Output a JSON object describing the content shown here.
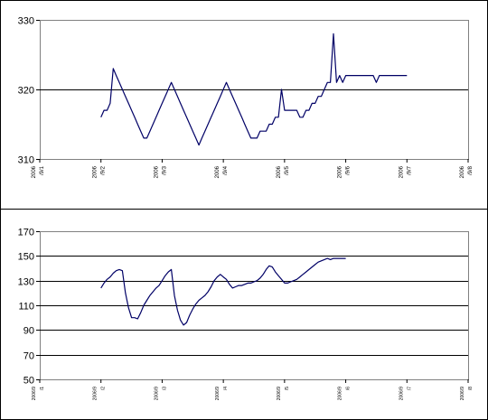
{
  "chart_data": [
    {
      "type": "line",
      "title": "",
      "xlabel": "",
      "ylabel": "",
      "ylim": [
        310,
        330
      ],
      "yticks": [
        310,
        320,
        330
      ],
      "grid": "reference line at 320",
      "legend": "none",
      "x_tick_labels": [
        {
          "year": "2006",
          "date": "/9/1"
        },
        {
          "year": "2006",
          "date": "/9/2"
        },
        {
          "year": "2006",
          "date": "/9/3"
        },
        {
          "year": "2006",
          "date": "/9/4"
        },
        {
          "year": "2006",
          "date": "/9/5"
        },
        {
          "year": "2006",
          "date": "/9/6"
        },
        {
          "year": "2006",
          "date": "/9/7"
        },
        {
          "year": "2006",
          "date": "/9/8"
        }
      ],
      "line_color": "#000066",
      "series": [
        {
          "x": [
            1.0,
            1.05,
            1.1,
            1.15,
            1.2,
            1.25,
            1.3,
            1.35,
            1.4,
            1.45,
            1.5,
            1.55,
            1.6,
            1.65,
            1.7,
            1.75,
            1.8,
            1.85,
            1.9,
            1.95,
            2.0,
            2.05,
            2.1,
            2.15,
            2.2,
            2.25,
            2.3,
            2.35,
            2.4,
            2.45,
            2.5,
            2.55,
            2.6,
            2.65,
            2.7,
            2.75,
            2.8,
            2.85,
            2.9,
            2.95,
            3.0,
            3.05,
            3.1,
            3.15,
            3.2,
            3.25,
            3.3,
            3.35,
            3.4,
            3.45,
            3.5,
            3.55,
            3.6,
            3.65,
            3.7,
            3.75,
            3.8,
            3.85,
            3.9,
            3.95,
            4.0,
            4.05,
            4.1,
            4.15,
            4.2,
            4.25,
            4.3,
            4.35,
            4.4,
            4.45,
            4.5,
            4.55,
            4.6,
            4.65,
            4.7,
            4.75,
            4.8,
            4.85,
            4.9,
            4.95,
            5.0,
            5.05,
            5.1,
            5.15,
            5.2,
            5.25,
            5.3,
            5.35,
            5.4,
            5.45,
            5.5,
            5.55,
            5.6,
            5.65,
            5.7,
            5.75,
            5.8,
            5.85,
            5.9,
            5.95,
            6.0
          ],
          "values": [
            316,
            317,
            317,
            318,
            323,
            322,
            321,
            320,
            319,
            318,
            317,
            316,
            315,
            314,
            313,
            313,
            314,
            315,
            316,
            317,
            318,
            319,
            320,
            321,
            320,
            319,
            318,
            317,
            316,
            315,
            314,
            313,
            312,
            313,
            314,
            315,
            316,
            317,
            318,
            319,
            320,
            321,
            320,
            319,
            318,
            317,
            316,
            315,
            314,
            313,
            313,
            313,
            314,
            314,
            314,
            315,
            315,
            316,
            316,
            320,
            317,
            317,
            317,
            317,
            317,
            316,
            316,
            317,
            317,
            318,
            318,
            319,
            319,
            320,
            321,
            321,
            328,
            321,
            322,
            321,
            322,
            322,
            322,
            322,
            322,
            322,
            322,
            322,
            322,
            322,
            321,
            322,
            322,
            322,
            322,
            322,
            322,
            322,
            322,
            322,
            322
          ]
        }
      ]
    },
    {
      "type": "line",
      "title": "",
      "xlabel": "",
      "ylabel": "",
      "ylim": [
        50,
        170
      ],
      "yticks": [
        50,
        70,
        90,
        110,
        130,
        150,
        170
      ],
      "grid": "horizontal gridlines at every tick",
      "legend": "none",
      "x_tick_labels": [
        {
          "year": "2006/9",
          "date": "/1"
        },
        {
          "year": "2006/9",
          "date": "/2"
        },
        {
          "year": "2006/9",
          "date": "/3"
        },
        {
          "year": "2006/9",
          "date": "/4"
        },
        {
          "year": "2006/9",
          "date": "/5"
        },
        {
          "year": "2006/9",
          "date": "/6"
        },
        {
          "year": "2006/9",
          "date": "/7"
        },
        {
          "year": "2006/9",
          "date": "/8"
        }
      ],
      "line_color": "#000066",
      "series": [
        {
          "x": [
            1.0,
            1.05,
            1.1,
            1.15,
            1.2,
            1.25,
            1.3,
            1.35,
            1.4,
            1.45,
            1.5,
            1.55,
            1.6,
            1.65,
            1.7,
            1.75,
            1.8,
            1.85,
            1.9,
            1.95,
            2.0,
            2.05,
            2.1,
            2.15,
            2.2,
            2.25,
            2.3,
            2.35,
            2.4,
            2.45,
            2.5,
            2.55,
            2.6,
            2.65,
            2.7,
            2.75,
            2.8,
            2.85,
            2.9,
            2.95,
            3.0,
            3.05,
            3.1,
            3.15,
            3.2,
            3.25,
            3.3,
            3.35,
            3.4,
            3.45,
            3.5,
            3.55,
            3.6,
            3.65,
            3.7,
            3.75,
            3.8,
            3.85,
            3.9,
            3.95,
            4.0,
            4.05,
            4.1,
            4.15,
            4.2,
            4.25,
            4.3,
            4.35,
            4.4,
            4.45,
            4.5,
            4.55,
            4.6,
            4.65,
            4.7,
            4.75,
            4.8,
            4.85,
            4.9,
            4.95,
            5.0
          ],
          "values": [
            124,
            128,
            131,
            133,
            136,
            138,
            139,
            138,
            120,
            108,
            100,
            100,
            99,
            104,
            110,
            114,
            118,
            121,
            124,
            126,
            130,
            134,
            137,
            139,
            118,
            106,
            98,
            94,
            96,
            102,
            107,
            111,
            114,
            116,
            118,
            121,
            125,
            130,
            133,
            135,
            133,
            131,
            127,
            124,
            125,
            126,
            126,
            127,
            128,
            128,
            129,
            130,
            132,
            135,
            139,
            142,
            141,
            137,
            134,
            131,
            128,
            128,
            129,
            130,
            131,
            133,
            135,
            137,
            139,
            141,
            143,
            145,
            146,
            147,
            148,
            147,
            148,
            148,
            148,
            148,
            148
          ]
        }
      ]
    }
  ]
}
